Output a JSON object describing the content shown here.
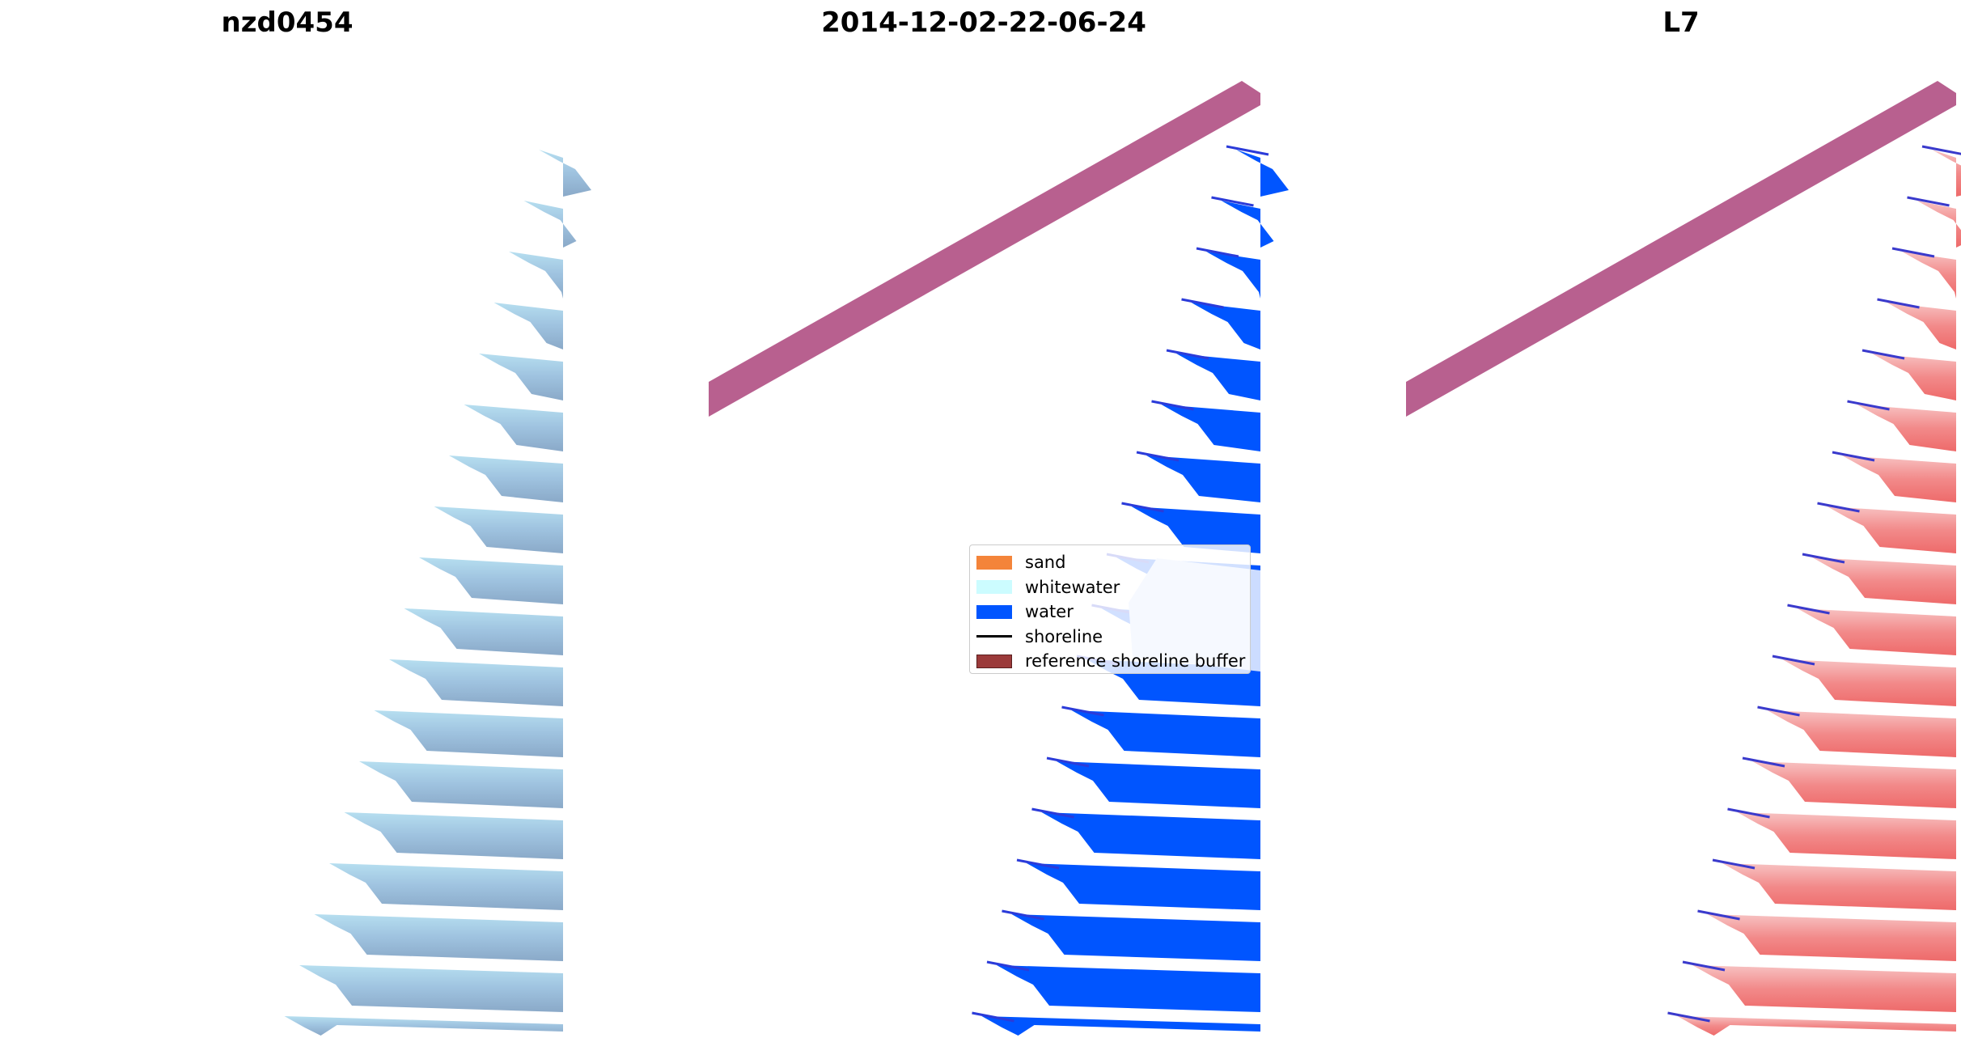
{
  "panels": [
    {
      "title": "nzd0454"
    },
    {
      "title": "2014-12-02-22-06-24"
    },
    {
      "title": "L7"
    }
  ],
  "legend": {
    "items": [
      {
        "label": "sand",
        "kind": "patch",
        "color": "#f4843a"
      },
      {
        "label": "whitewater",
        "kind": "patch",
        "color": "#ccfcff"
      },
      {
        "label": "water",
        "kind": "patch",
        "color": "#0055ff"
      },
      {
        "label": "shoreline",
        "kind": "line",
        "color": "#000000"
      },
      {
        "label": "reference shoreline buffer",
        "kind": "patch",
        "color": "#9b3a3a"
      }
    ]
  },
  "colors": {
    "buffer": "#b8608f",
    "water": "#0055ff",
    "rgb_stripe": "#9fbedc",
    "index_stripe": "#f06b6b"
  }
}
